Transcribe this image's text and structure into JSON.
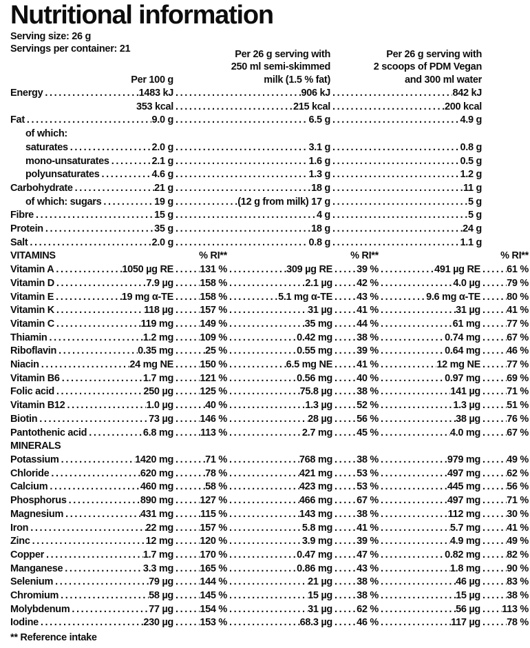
{
  "title": "Nutritional information",
  "serving": {
    "size_label": "Serving size: 26 g",
    "per_container_label": "Servings per container: 21"
  },
  "columns": {
    "col1": "Per 100 g",
    "col2_lines": [
      "Per 26 g serving with",
      "250 ml semi-skimmed",
      "milk (1.5 % fat)"
    ],
    "col3_lines": [
      "Per 26 g serving with",
      "2 scoops of PDM Vegan",
      "and 300 ml water"
    ],
    "ri_header": "% RI**"
  },
  "macros": [
    {
      "label": "Energy",
      "v1": "1483 kJ",
      "v2": "906 kJ",
      "v3": "842 kJ"
    },
    {
      "label": "",
      "v1": "353 kcal",
      "v2": "215 kcal",
      "v3": "200 kcal",
      "noLead": true
    },
    {
      "label": "Fat",
      "v1": "9.0 g",
      "v2": "6.5 g",
      "v3": "4.9 g"
    },
    {
      "label": "of which:",
      "indent": true,
      "labelOnly": true
    },
    {
      "label": "saturates",
      "indent": true,
      "v1": "2.0 g",
      "v2": "3.1 g",
      "v3": "0.8 g"
    },
    {
      "label": "mono-unsaturates",
      "indent": true,
      "v1": "2.1 g",
      "v2": "1.6 g",
      "v3": "0.5 g"
    },
    {
      "label": "polyunsaturates",
      "indent": true,
      "v1": "4.6 g",
      "v2": "1.3 g",
      "v3": "1.2 g"
    },
    {
      "label": "Carbohydrate",
      "v1": "21 g",
      "v2": "18 g",
      "v3": "11 g"
    },
    {
      "label": "of which: sugars",
      "indent": true,
      "v1": "19 g",
      "v2": "(12 g from milk) 17 g",
      "v3": "5 g"
    },
    {
      "label": "Fibre",
      "v1": "15 g",
      "v2": "4 g",
      "v3": "5 g"
    },
    {
      "label": "Protein",
      "v1": "35 g",
      "v2": "18 g",
      "v3": "24 g"
    },
    {
      "label": "Salt",
      "v1": "2.0 g",
      "v2": "0.8 g",
      "v3": "1.1 g"
    }
  ],
  "vitamins_header": "VITAMINS",
  "vitamins": [
    {
      "label": "Vitamin A",
      "a1": "1050 µg RE",
      "p1": "131 %",
      "a2": "309 µg RE",
      "p2": "39 %",
      "a3": "491 µg RE",
      "p3": "61 %"
    },
    {
      "label": "Vitamin D",
      "a1": "7.9 µg",
      "p1": "158 %",
      "a2": "2.1 µg",
      "p2": "42 %",
      "a3": "4.0 µg",
      "p3": "79 %"
    },
    {
      "label": "Vitamin E",
      "a1": "19 mg α-TE",
      "p1": "158 %",
      "a2": "5.1 mg α-TE",
      "p2": "43 %",
      "a3": "9.6 mg α-TE",
      "p3": "80 %"
    },
    {
      "label": "Vitamin K",
      "a1": "118 µg",
      "p1": "157 %",
      "a2": "31 µg",
      "p2": "41 %",
      "a3": "31 µg",
      "p3": "41 %"
    },
    {
      "label": "Vitamin C",
      "a1": "119 mg",
      "p1": "149 %",
      "a2": "35 mg",
      "p2": "44 %",
      "a3": "61 mg",
      "p3": "77 %"
    },
    {
      "label": "Thiamin",
      "a1": "1.2 mg",
      "p1": "109 %",
      "a2": "0.42 mg",
      "p2": "38 %",
      "a3": "0.74 mg",
      "p3": "67 %"
    },
    {
      "label": "Riboflavin",
      "a1": "0.35 mg",
      "p1": "25 %",
      "a2": "0.55 mg",
      "p2": "39 %",
      "a3": "0.64 mg",
      "p3": "46 %"
    },
    {
      "label": "Niacin",
      "a1": "24 mg NE",
      "p1": "150 %",
      "a2": "6.5 mg NE",
      "p2": "41 %",
      "a3": "12 mg NE",
      "p3": "77 %"
    },
    {
      "label": "Vitamin B6",
      "a1": "1.7 mg",
      "p1": "121 %",
      "a2": "0.56 mg",
      "p2": "40 %",
      "a3": "0.97 mg",
      "p3": "69 %"
    },
    {
      "label": "Folic acid",
      "a1": "250 µg",
      "p1": "125 %",
      "a2": "75.8 µg",
      "p2": "38 %",
      "a3": "141 µg",
      "p3": "71 %"
    },
    {
      "label": "Vitamin B12",
      "a1": "1.0 µg",
      "p1": "40 %",
      "a2": "1.3 µg",
      "p2": "52 %",
      "a3": "1.3 µg",
      "p3": "51 %"
    },
    {
      "label": "Biotin",
      "a1": "73 µg",
      "p1": "146 %",
      "a2": "28 µg",
      "p2": "56 %",
      "a3": "38 µg",
      "p3": "76 %"
    },
    {
      "label": "Pantothenic acid",
      "a1": "6.8 mg",
      "p1": "113 %",
      "a2": "2.7 mg",
      "p2": "45 %",
      "a3": "4.0 mg",
      "p3": "67 %"
    }
  ],
  "minerals_header": "MINERALS",
  "minerals": [
    {
      "label": "Potassium",
      "a1": "1420 mg",
      "p1": "71 %",
      "a2": "768 mg",
      "p2": "38 %",
      "a3": "979 mg",
      "p3": "49 %"
    },
    {
      "label": "Chloride",
      "a1": "620 mg",
      "p1": "78 %",
      "a2": "421 mg",
      "p2": "53 %",
      "a3": "497 mg",
      "p3": "62 %"
    },
    {
      "label": "Calcium",
      "a1": "460 mg",
      "p1": "58 %",
      "a2": "423 mg",
      "p2": "53 %",
      "a3": "445 mg",
      "p3": "56 %"
    },
    {
      "label": "Phosphorus",
      "a1": "890 mg",
      "p1": "127 %",
      "a2": "466 mg",
      "p2": "67 %",
      "a3": "497 mg",
      "p3": "71 %"
    },
    {
      "label": "Magnesium",
      "a1": "431 mg",
      "p1": "115 %",
      "a2": "143 mg",
      "p2": "38 %",
      "a3": "112 mg",
      "p3": "30 %"
    },
    {
      "label": "Iron",
      "a1": "22 mg",
      "p1": "157 %",
      "a2": "5.8 mg",
      "p2": "41 %",
      "a3": "5.7 mg",
      "p3": "41 %"
    },
    {
      "label": "Zinc",
      "a1": "12 mg",
      "p1": "120 %",
      "a2": "3.9 mg",
      "p2": "39 %",
      "a3": "4.9 mg",
      "p3": "49 %"
    },
    {
      "label": "Copper",
      "a1": "1.7 mg",
      "p1": "170 %",
      "a2": "0.47 mg",
      "p2": "47 %",
      "a3": "0.82 mg",
      "p3": "82 %"
    },
    {
      "label": "Manganese",
      "a1": "3.3 mg",
      "p1": "165 %",
      "a2": "0.86 mg",
      "p2": "43 %",
      "a3": "1.8 mg",
      "p3": "90 %"
    },
    {
      "label": "Selenium",
      "a1": "79 µg",
      "p1": "144 %",
      "a2": "21 µg",
      "p2": "38 %",
      "a3": "46 µg",
      "p3": "83 %"
    },
    {
      "label": "Chromium",
      "a1": "58 µg",
      "p1": "145 %",
      "a2": "15 µg",
      "p2": "38 %",
      "a3": "15 µg",
      "p3": "38 %"
    },
    {
      "label": "Molybdenum",
      "a1": "77 µg",
      "p1": "154 %",
      "a2": "31 µg",
      "p2": "62 %",
      "a3": "56 µg",
      "p3": "113 %"
    },
    {
      "label": "Iodine",
      "a1": "230 µg",
      "p1": "153 %",
      "a2": "68.3 µg",
      "p2": "46 %",
      "a3": "117 µg",
      "p3": "78 %"
    }
  ],
  "footnote": "** Reference intake"
}
